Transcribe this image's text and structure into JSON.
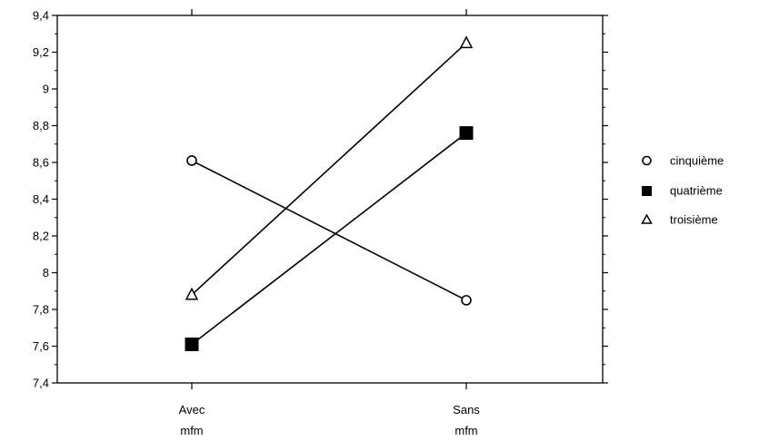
{
  "chart_data": {
    "type": "line",
    "title": "",
    "xlabel": "",
    "ylabel": "",
    "categories": [
      [
        "Avec",
        "mfm"
      ],
      [
        "Sans",
        "mfm"
      ]
    ],
    "ylim": [
      7.4,
      9.4
    ],
    "yticks": [
      7.4,
      7.6,
      7.8,
      8,
      8.2,
      8.4,
      8.6,
      8.8,
      9,
      9.2,
      9.4
    ],
    "ytick_labels": [
      "7,4",
      "7,6",
      "7,8",
      "8",
      "8,2",
      "8,4",
      "8,6",
      "8,8",
      "9",
      "9,2",
      "9,4"
    ],
    "grid": false,
    "legend_position": "right",
    "series": [
      {
        "name": "cinquième",
        "marker": "open-circle",
        "values": [
          8.61,
          7.85
        ]
      },
      {
        "name": "quatrième",
        "marker": "filled-square",
        "values": [
          7.61,
          8.76
        ]
      },
      {
        "name": "troisième",
        "marker": "open-triangle",
        "values": [
          7.88,
          9.25
        ]
      }
    ],
    "colors": {
      "line": "#000000",
      "background": "#ffffff"
    }
  }
}
